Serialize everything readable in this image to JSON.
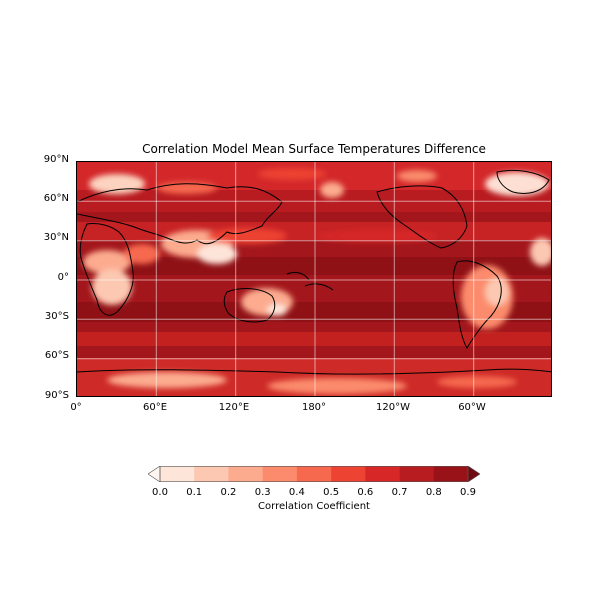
{
  "title": "Correlation Model Mean Surface Temperatures Difference",
  "lat_labels": [
    "90°N",
    "60°N",
    "30°N",
    "0°",
    "30°S",
    "60°S",
    "90°S"
  ],
  "lon_labels": [
    "0°",
    "60°E",
    "120°E",
    "180°",
    "120°W",
    "60°W"
  ],
  "colorbar": {
    "label": "Correlation Coefficient",
    "ticks": [
      "0.0",
      "0.1",
      "0.2",
      "0.3",
      "0.4",
      "0.5",
      "0.6",
      "0.7",
      "0.8",
      "0.9"
    ],
    "colors": [
      "#fee5d9",
      "#fcc8b1",
      "#fcab8f",
      "#fb8b6c",
      "#f6694f",
      "#ed4333",
      "#d72726",
      "#b81b20",
      "#981217",
      "#700a12"
    ],
    "extend": "both"
  },
  "map": {
    "projection": "PlateCarree",
    "central_longitude": 180,
    "gridlines": true,
    "coastlines": true
  }
}
